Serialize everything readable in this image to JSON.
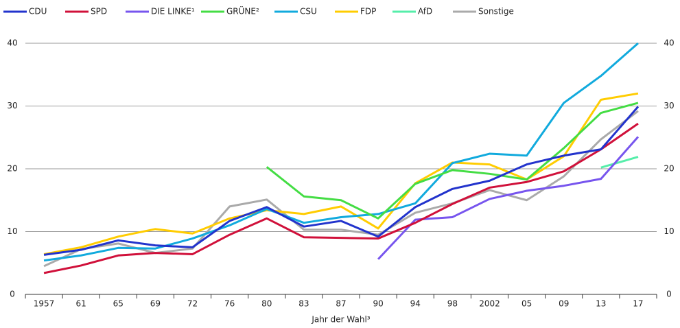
{
  "chart_data": {
    "type": "line",
    "x_label": "Jahr der Wahl³",
    "categories": [
      "1957",
      "61",
      "65",
      "69",
      "72",
      "76",
      "80",
      "83",
      "87",
      "90",
      "94",
      "98",
      "2002",
      "05",
      "09",
      "13",
      "17"
    ],
    "series": [
      {
        "name": "CDU",
        "color": "#2233cc",
        "values": [
          6.3,
          7.1,
          8.6,
          7.8,
          7.5,
          11.7,
          13.9,
          10.8,
          11.7,
          9.2,
          13.9,
          16.8,
          18.1,
          20.7,
          22.1,
          23.1,
          29.9
        ]
      },
      {
        "name": "SPD",
        "color": "#d0103a",
        "values": [
          3.4,
          4.6,
          6.2,
          6.6,
          6.4,
          9.5,
          12.1,
          9.1,
          9.0,
          8.9,
          11.4,
          14.4,
          17.0,
          17.9,
          19.6,
          23.1,
          27.2
        ]
      },
      {
        "name": "DIE LINKE¹",
        "color": "#7755ee",
        "values": [
          null,
          null,
          null,
          null,
          null,
          null,
          null,
          null,
          null,
          5.6,
          11.9,
          12.3,
          15.2,
          16.5,
          17.3,
          18.4,
          25.1
        ]
      },
      {
        "name": "GRÜNE²",
        "color": "#44dd44",
        "values": [
          null,
          null,
          null,
          null,
          null,
          null,
          20.3,
          15.6,
          15.0,
          12.1,
          17.6,
          19.8,
          19.2,
          18.3,
          23.3,
          28.9,
          30.5
        ]
      },
      {
        "name": "CSU",
        "color": "#11aadd",
        "values": [
          5.4,
          6.2,
          7.4,
          7.3,
          8.9,
          11.0,
          13.6,
          11.4,
          12.3,
          12.8,
          14.5,
          20.9,
          22.4,
          22.1,
          30.5,
          34.8,
          40.0
        ]
      },
      {
        "name": "FDP",
        "color": "#ffcc00",
        "values": [
          6.4,
          7.5,
          9.2,
          10.4,
          9.7,
          12.1,
          13.4,
          12.8,
          14.0,
          10.5,
          17.7,
          21.0,
          20.7,
          18.3,
          22.0,
          31.0,
          32.0
        ]
      },
      {
        "name": "AfD",
        "color": "#55eeaa",
        "values": [
          null,
          null,
          null,
          null,
          null,
          null,
          null,
          null,
          null,
          null,
          null,
          null,
          null,
          null,
          null,
          20.2,
          21.9
        ]
      },
      {
        "name": "Sonstige",
        "color": "#aaaaaa",
        "values": [
          4.5,
          7.2,
          8.1,
          6.6,
          7.3,
          14.0,
          15.1,
          10.3,
          10.3,
          9.5,
          13.0,
          14.5,
          16.6,
          15.0,
          18.8,
          24.7,
          29.2
        ]
      }
    ],
    "ylim": [
      0,
      40
    ],
    "yticks": [
      0,
      10,
      20,
      30,
      40
    ],
    "grid": true
  }
}
